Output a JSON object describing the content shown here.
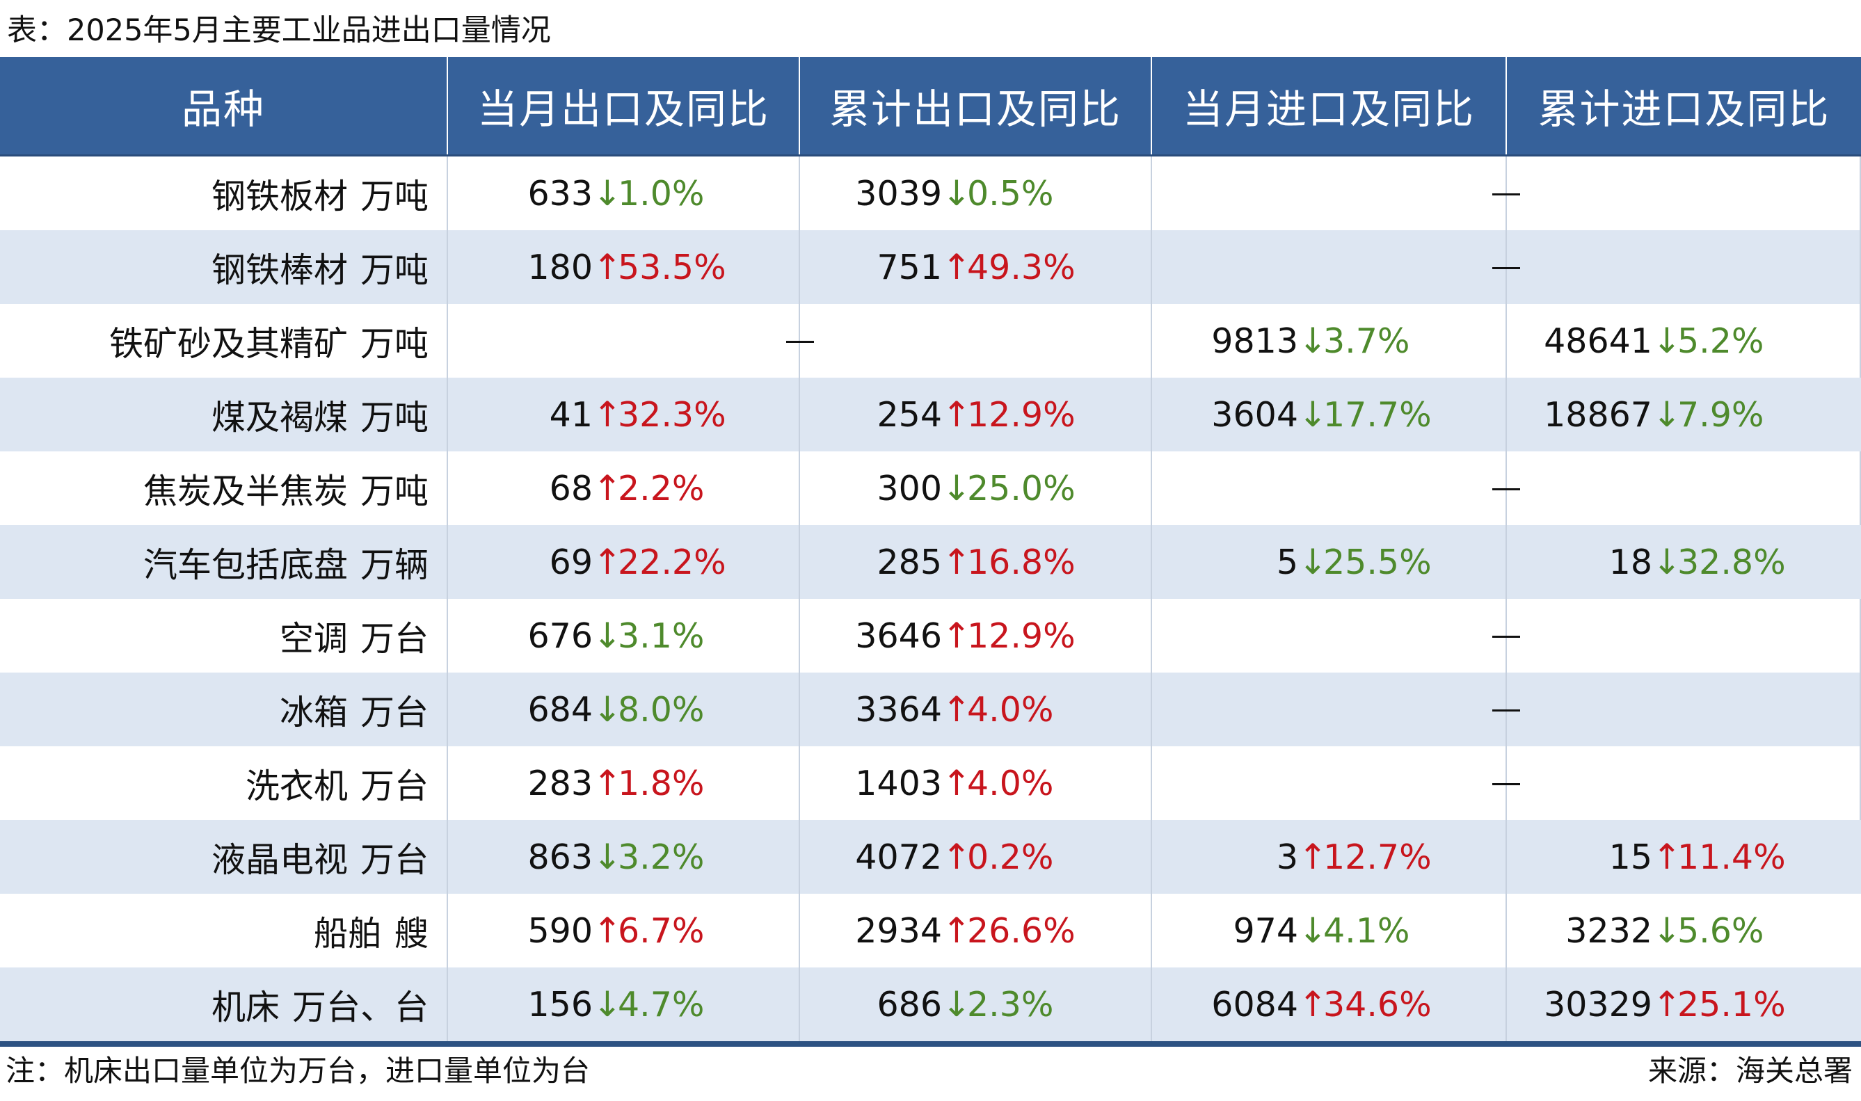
{
  "title": "表：2025年5月主要工业品进出口量情况",
  "headers": [
    "品种",
    "当月出口及同比",
    "累计出口及同比",
    "当月进口及同比",
    "累计进口及同比"
  ],
  "colors": {
    "header_bg": "#36619a",
    "row_alt": "#dde6f2",
    "up": "#c8151d",
    "down": "#4e8a2c",
    "bottom_rule": "#2c5282"
  },
  "rows": [
    {
      "name": "钢铁板材",
      "unit": "万吨",
      "cells": [
        {
          "num": "633",
          "arrow": "↓",
          "pct": "1.0%",
          "dir": "down"
        },
        {
          "num": "3039",
          "arrow": "↓",
          "pct": "0.5%",
          "dir": "down"
        },
        null,
        null
      ],
      "dash_import": true,
      "dash_export": false
    },
    {
      "name": "钢铁棒材",
      "unit": "万吨",
      "cells": [
        {
          "num": "180",
          "arrow": "↑",
          "pct": "53.5%",
          "dir": "up"
        },
        {
          "num": "751",
          "arrow": "↑",
          "pct": "49.3%",
          "dir": "up"
        },
        null,
        null
      ],
      "dash_import": true,
      "dash_export": false
    },
    {
      "name": "铁矿砂及其精矿",
      "unit": "万吨",
      "cells": [
        null,
        null,
        {
          "num": "9813",
          "arrow": "↓",
          "pct": "3.7%",
          "dir": "down"
        },
        {
          "num": "48641",
          "arrow": "↓",
          "pct": "5.2%",
          "dir": "down"
        }
      ],
      "dash_import": false,
      "dash_export": true
    },
    {
      "name": "煤及褐煤",
      "unit": "万吨",
      "cells": [
        {
          "num": "41",
          "arrow": "↑",
          "pct": "32.3%",
          "dir": "up"
        },
        {
          "num": "254",
          "arrow": "↑",
          "pct": "12.9%",
          "dir": "up"
        },
        {
          "num": "3604",
          "arrow": "↓",
          "pct": "17.7%",
          "dir": "down"
        },
        {
          "num": "18867",
          "arrow": "↓",
          "pct": "7.9%",
          "dir": "down"
        }
      ],
      "dash_import": false,
      "dash_export": false
    },
    {
      "name": "焦炭及半焦炭",
      "unit": "万吨",
      "cells": [
        {
          "num": "68",
          "arrow": "↑",
          "pct": "2.2%",
          "dir": "up"
        },
        {
          "num": "300",
          "arrow": "↓",
          "pct": "25.0%",
          "dir": "down"
        },
        null,
        null
      ],
      "dash_import": true,
      "dash_export": false
    },
    {
      "name": "汽车包括底盘",
      "unit": "万辆",
      "cells": [
        {
          "num": "69",
          "arrow": "↑",
          "pct": "22.2%",
          "dir": "up"
        },
        {
          "num": "285",
          "arrow": "↑",
          "pct": "16.8%",
          "dir": "up"
        },
        {
          "num": "5",
          "arrow": "↓",
          "pct": "25.5%",
          "dir": "down"
        },
        {
          "num": "18",
          "arrow": "↓",
          "pct": "32.8%",
          "dir": "down"
        }
      ],
      "dash_import": false,
      "dash_export": false
    },
    {
      "name": "空调",
      "unit": "万台",
      "cells": [
        {
          "num": "676",
          "arrow": "↓",
          "pct": "3.1%",
          "dir": "down"
        },
        {
          "num": "3646",
          "arrow": "↑",
          "pct": "12.9%",
          "dir": "up"
        },
        null,
        null
      ],
      "dash_import": true,
      "dash_export": false
    },
    {
      "name": "冰箱",
      "unit": "万台",
      "cells": [
        {
          "num": "684",
          "arrow": "↓",
          "pct": "8.0%",
          "dir": "down"
        },
        {
          "num": "3364",
          "arrow": "↑",
          "pct": "4.0%",
          "dir": "up"
        },
        null,
        null
      ],
      "dash_import": true,
      "dash_export": false
    },
    {
      "name": "洗衣机",
      "unit": "万台",
      "cells": [
        {
          "num": "283",
          "arrow": "↑",
          "pct": "1.8%",
          "dir": "up"
        },
        {
          "num": "1403",
          "arrow": "↑",
          "pct": "4.0%",
          "dir": "up"
        },
        null,
        null
      ],
      "dash_import": true,
      "dash_export": false
    },
    {
      "name": "液晶电视",
      "unit": "万台",
      "cells": [
        {
          "num": "863",
          "arrow": "↓",
          "pct": "3.2%",
          "dir": "down"
        },
        {
          "num": "4072",
          "arrow": "↑",
          "pct": "0.2%",
          "dir": "up"
        },
        {
          "num": "3",
          "arrow": "↑",
          "pct": "12.7%",
          "dir": "up"
        },
        {
          "num": "15",
          "arrow": "↑",
          "pct": "11.4%",
          "dir": "up"
        }
      ],
      "dash_import": false,
      "dash_export": false
    },
    {
      "name": "船舶",
      "unit": "艘",
      "cells": [
        {
          "num": "590",
          "arrow": "↑",
          "pct": "6.7%",
          "dir": "up"
        },
        {
          "num": "2934",
          "arrow": "↑",
          "pct": "26.6%",
          "dir": "up"
        },
        {
          "num": "974",
          "arrow": "↓",
          "pct": "4.1%",
          "dir": "down"
        },
        {
          "num": "3232",
          "arrow": "↓",
          "pct": "5.6%",
          "dir": "down"
        }
      ],
      "dash_import": false,
      "dash_export": false
    },
    {
      "name": "机床",
      "unit": "万台、台",
      "cells": [
        {
          "num": "156",
          "arrow": "↓",
          "pct": "4.7%",
          "dir": "down"
        },
        {
          "num": "686",
          "arrow": "↓",
          "pct": "2.3%",
          "dir": "down"
        },
        {
          "num": "6084",
          "arrow": "↑",
          "pct": "34.6%",
          "dir": "up"
        },
        {
          "num": "30329",
          "arrow": "↑",
          "pct": "25.1%",
          "dir": "up"
        }
      ],
      "dash_import": false,
      "dash_export": false
    }
  ],
  "note": "注：机床出口量单位为万台，进口量单位为台",
  "source": "来源：海关总署"
}
